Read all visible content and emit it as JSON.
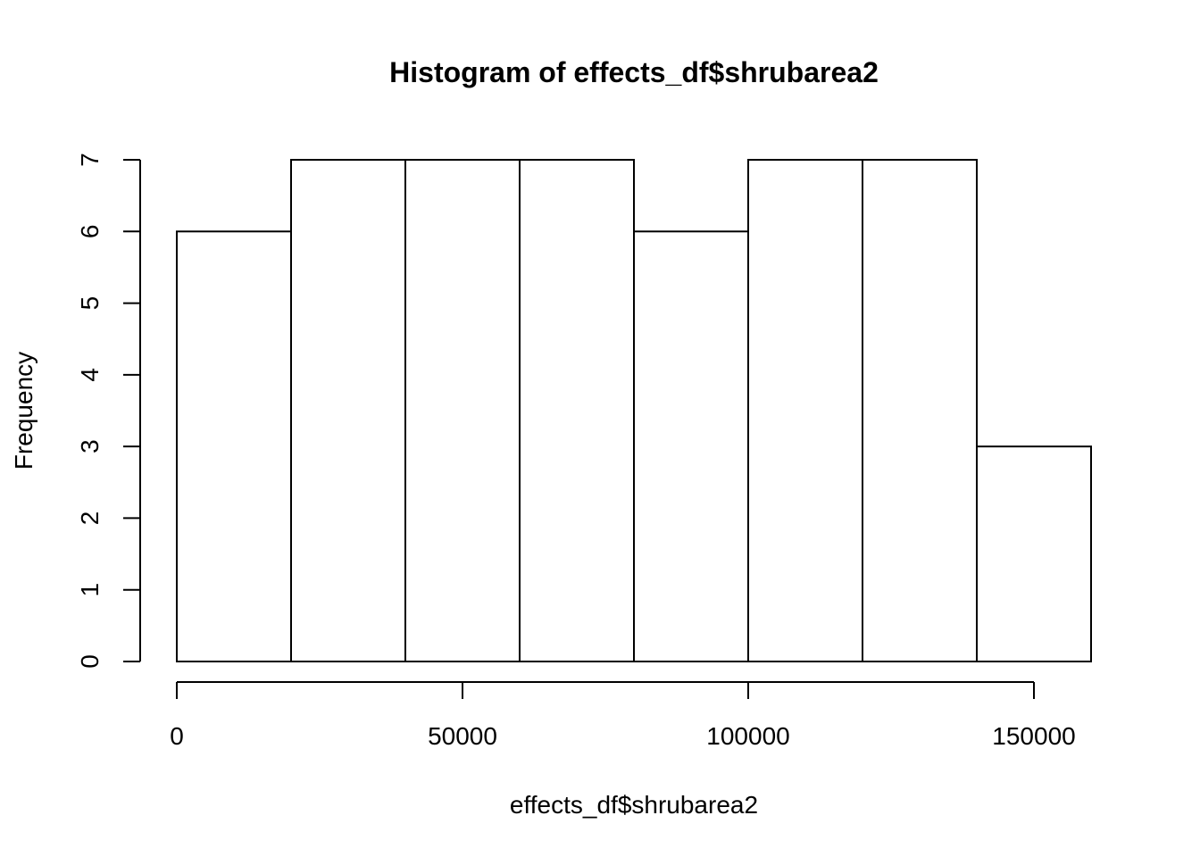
{
  "chart_data": {
    "type": "histogram",
    "title": "Histogram of effects_df$shrubarea2",
    "xlabel": "effects_df$shrubarea2",
    "ylabel": "Frequency",
    "bin_edges": [
      0,
      20000,
      40000,
      60000,
      80000,
      100000,
      120000,
      140000,
      160000
    ],
    "counts": [
      6,
      7,
      7,
      7,
      6,
      7,
      7,
      3
    ],
    "xlim": [
      0,
      160000
    ],
    "ylim": [
      0,
      7
    ],
    "x_ticks": [
      0,
      50000,
      100000,
      150000
    ],
    "x_tick_labels": [
      "0",
      "50000",
      "100000",
      "150000"
    ],
    "y_ticks": [
      0,
      1,
      2,
      3,
      4,
      5,
      6,
      7
    ],
    "y_tick_labels": [
      "0",
      "1",
      "2",
      "3",
      "4",
      "5",
      "6",
      "7"
    ],
    "bar_fill": "#ffffff",
    "bar_stroke": "#000000",
    "grid": false,
    "legend": "none"
  }
}
